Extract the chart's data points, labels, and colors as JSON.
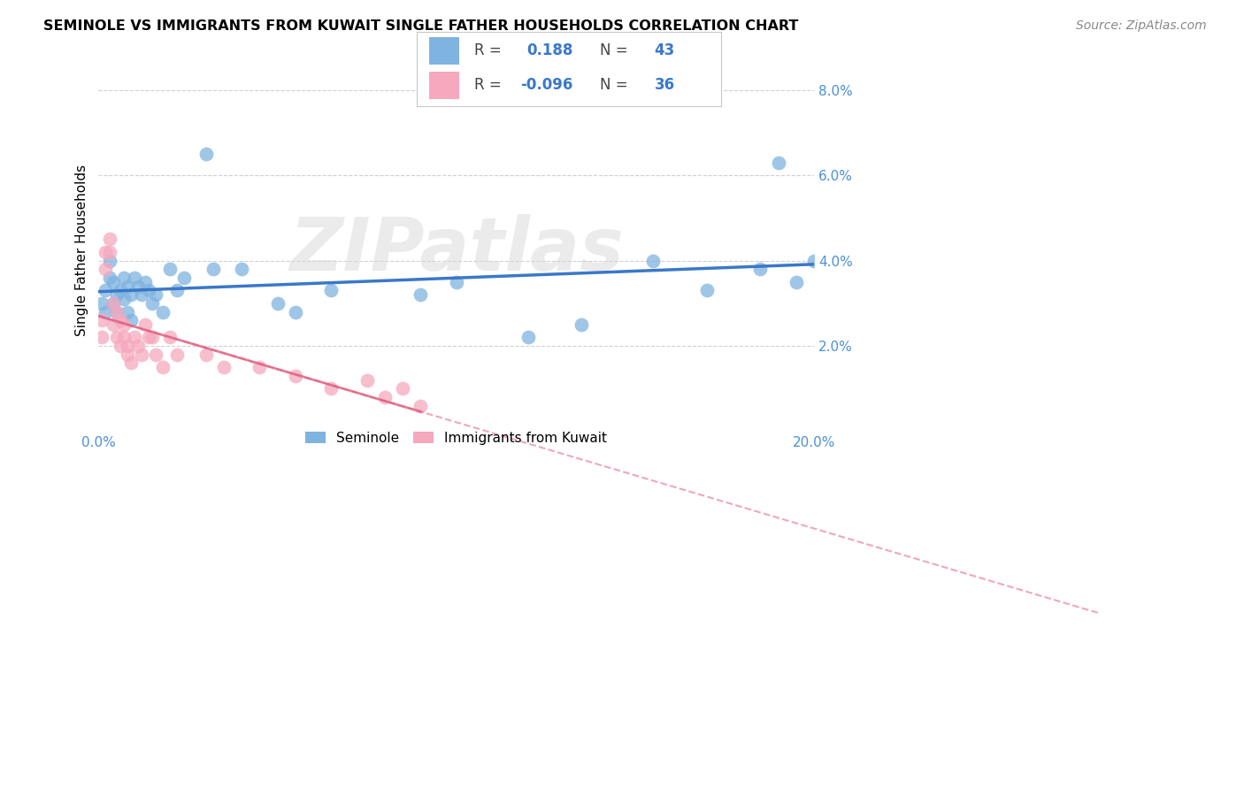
{
  "title": "SEMINOLE VS IMMIGRANTS FROM KUWAIT SINGLE FATHER HOUSEHOLDS CORRELATION CHART",
  "source": "Source: ZipAtlas.com",
  "ylabel": "Single Father Households",
  "xlim": [
    0.0,
    0.2
  ],
  "ylim": [
    0.0,
    0.085
  ],
  "ytick_vals": [
    0.02,
    0.04,
    0.06,
    0.08
  ],
  "ytick_labels": [
    "2.0%",
    "4.0%",
    "6.0%",
    "8.0%"
  ],
  "xtick_vals": [
    0.0,
    0.04,
    0.08,
    0.12,
    0.16,
    0.2
  ],
  "xtick_labels": [
    "0.0%",
    "",
    "",
    "",
    "",
    "20.0%"
  ],
  "blue_color": "#7fb3e0",
  "pink_color": "#f5a8be",
  "line_blue_color": "#3a78c9",
  "line_pink_color": "#e06080",
  "watermark_text": "ZIPatlas",
  "seminole_x": [
    0.001,
    0.002,
    0.002,
    0.003,
    0.003,
    0.004,
    0.004,
    0.005,
    0.005,
    0.006,
    0.007,
    0.007,
    0.008,
    0.008,
    0.009,
    0.009,
    0.01,
    0.011,
    0.012,
    0.013,
    0.014,
    0.015,
    0.016,
    0.018,
    0.02,
    0.022,
    0.024,
    0.03,
    0.032,
    0.04,
    0.05,
    0.055,
    0.065,
    0.09,
    0.1,
    0.12,
    0.135,
    0.155,
    0.17,
    0.185,
    0.19,
    0.195,
    0.2
  ],
  "seminole_y": [
    0.03,
    0.028,
    0.033,
    0.036,
    0.04,
    0.035,
    0.03,
    0.032,
    0.028,
    0.033,
    0.031,
    0.036,
    0.034,
    0.028,
    0.032,
    0.026,
    0.036,
    0.034,
    0.032,
    0.035,
    0.033,
    0.03,
    0.032,
    0.028,
    0.038,
    0.033,
    0.036,
    0.065,
    0.038,
    0.038,
    0.03,
    0.028,
    0.033,
    0.032,
    0.035,
    0.022,
    0.025,
    0.04,
    0.033,
    0.038,
    0.063,
    0.035,
    0.04
  ],
  "kuwait_x": [
    0.001,
    0.001,
    0.002,
    0.002,
    0.003,
    0.003,
    0.004,
    0.004,
    0.005,
    0.005,
    0.006,
    0.006,
    0.007,
    0.007,
    0.008,
    0.008,
    0.009,
    0.01,
    0.011,
    0.012,
    0.013,
    0.014,
    0.015,
    0.016,
    0.018,
    0.02,
    0.022,
    0.03,
    0.035,
    0.045,
    0.055,
    0.065,
    0.075,
    0.08,
    0.085,
    0.09
  ],
  "kuwait_y": [
    0.026,
    0.022,
    0.042,
    0.038,
    0.045,
    0.042,
    0.03,
    0.025,
    0.028,
    0.022,
    0.026,
    0.02,
    0.025,
    0.022,
    0.02,
    0.018,
    0.016,
    0.022,
    0.02,
    0.018,
    0.025,
    0.022,
    0.022,
    0.018,
    0.015,
    0.022,
    0.018,
    0.018,
    0.015,
    0.015,
    0.013,
    0.01,
    0.012,
    0.008,
    0.01,
    0.006
  ],
  "legend_items": [
    {
      "label": "R =   0.188   N = 43",
      "color": "#7fb3e0"
    },
    {
      "label": "R = -0.096   N = 36",
      "color": "#f5a8be"
    }
  ]
}
